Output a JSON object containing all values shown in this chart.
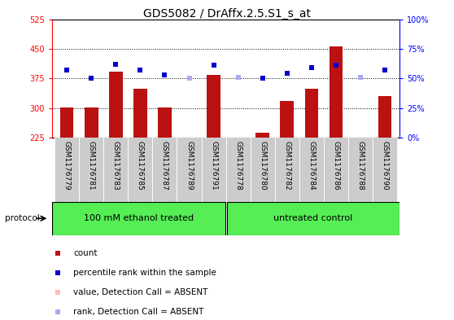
{
  "title": "GDS5082 / DrAffx.2.5.S1_s_at",
  "samples": [
    "GSM1176779",
    "GSM1176781",
    "GSM1176783",
    "GSM1176785",
    "GSM1176787",
    "GSM1176789",
    "GSM1176791",
    "GSM1176778",
    "GSM1176780",
    "GSM1176782",
    "GSM1176784",
    "GSM1176786",
    "GSM1176788",
    "GSM1176790"
  ],
  "count_values": [
    302,
    302,
    392,
    348,
    301,
    225,
    383,
    225,
    237,
    318,
    348,
    456,
    225,
    330
  ],
  "count_absent": [
    false,
    false,
    false,
    false,
    false,
    true,
    false,
    true,
    false,
    false,
    false,
    false,
    true,
    false
  ],
  "rank_values": [
    57,
    50,
    62,
    57,
    53,
    50,
    61,
    51,
    50,
    54,
    59,
    61,
    51,
    57
  ],
  "rank_absent": [
    false,
    false,
    false,
    false,
    false,
    true,
    false,
    true,
    false,
    false,
    false,
    false,
    true,
    false
  ],
  "group1_label": "100 mM ethanol treated",
  "group2_label": "untreated control",
  "group1_count": 7,
  "group2_count": 7,
  "protocol_label": "protocol",
  "ylim_left": [
    225,
    525
  ],
  "yticks_left": [
    225,
    300,
    375,
    450,
    525
  ],
  "ylim_right": [
    0,
    100
  ],
  "yticks_right": [
    0,
    25,
    50,
    75,
    100
  ],
  "bar_color_present": "#bb1111",
  "bar_color_absent": "#ffbbbb",
  "rank_color_present": "#0000cc",
  "rank_color_absent": "#aaaaee",
  "legend_items": [
    {
      "label": "count",
      "color": "#bb1111"
    },
    {
      "label": "percentile rank within the sample",
      "color": "#0000cc"
    },
    {
      "label": "value, Detection Call = ABSENT",
      "color": "#ffbbbb"
    },
    {
      "label": "rank, Detection Call = ABSENT",
      "color": "#aaaaee"
    }
  ],
  "cell_bg_color": "#cccccc",
  "group_bg_color": "#55ee55",
  "title_fontsize": 10,
  "tick_fontsize": 7,
  "label_fontsize": 6.5,
  "grid_yticks": [
    300,
    375,
    450
  ]
}
